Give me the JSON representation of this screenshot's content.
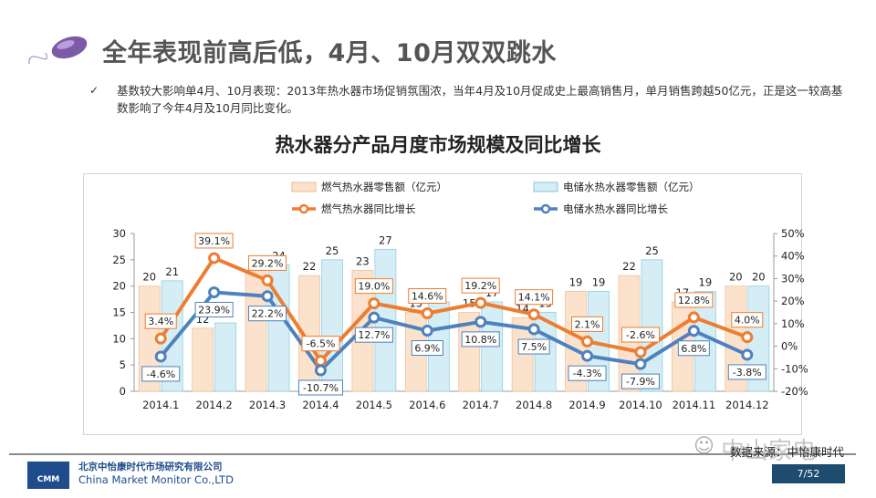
{
  "header": {
    "title": "全年表现前高后低，4月、10月双双跳水",
    "bullet_mark": "✓",
    "bullet": "基数较大影响单4月、10月表现：2013年热水器市场促销氛围浓，当年4月及10月促成史上最高销售月，单月销售跨越50亿元，正是这一较高基数影响了今年4月及10月同比变化。"
  },
  "chart_title": "热水器分产品月度市场规模及同比增长",
  "chart_data": {
    "type": "bar",
    "categories": [
      "2014.1",
      "2014.2",
      "2014.3",
      "2014.4",
      "2014.5",
      "2014.6",
      "2014.7",
      "2014.8",
      "2014.9",
      "2014.10",
      "2014.11",
      "2014.12"
    ],
    "series": [
      {
        "name": "燃气热水器零售额（亿元）",
        "type": "bar",
        "axis": "left",
        "color": "#fbe2cc",
        "values": [
          20,
          12,
          23,
          22,
          23,
          15,
          15,
          14,
          19,
          22,
          17,
          20
        ]
      },
      {
        "name": "电储水热水器零售额（亿元）",
        "type": "bar",
        "axis": "left",
        "color": "#d5eef5",
        "values": [
          21,
          13,
          24,
          25,
          27,
          17,
          17,
          15,
          19,
          25,
          19,
          20
        ]
      },
      {
        "name": "燃气热水器同比增长",
        "type": "line",
        "axis": "right",
        "color": "#ed7d31",
        "values": [
          3.4,
          39.1,
          29.2,
          -6.5,
          19.0,
          14.6,
          19.2,
          14.1,
          2.1,
          -2.6,
          12.8,
          4.0
        ],
        "labels": [
          "3.4%",
          "39.1%",
          "29.2%",
          "-6.5%",
          "19.0%",
          "14.6%",
          "19.2%",
          "14.1%",
          "2.1%",
          "-2.6%",
          "12.8%",
          "4.0%"
        ]
      },
      {
        "name": "电储水热水器同比增长",
        "type": "line",
        "axis": "right",
        "color": "#4f81bd",
        "values": [
          -4.6,
          23.9,
          22.2,
          -10.7,
          12.7,
          6.9,
          10.8,
          7.5,
          -4.3,
          -7.9,
          6.8,
          -3.8
        ],
        "labels": [
          "-4.6%",
          "23.9%",
          "22.2%",
          "-10.7%",
          "12.7%",
          "6.9%",
          "10.8%",
          "7.5%",
          "-4.3%",
          "-7.9%",
          "6.8%",
          "-3.8%"
        ]
      }
    ],
    "y_left": {
      "min": 0,
      "max": 30,
      "ticks": [
        "0",
        "5",
        "10",
        "15",
        "20",
        "25",
        "30"
      ]
    },
    "y_right": {
      "min": -20,
      "max": 50,
      "ticks": [
        "-20%",
        "-10%",
        "0%",
        "10%",
        "20%",
        "30%",
        "40%",
        "50%"
      ]
    },
    "legend_position": "top",
    "grid": false
  },
  "footer": {
    "source": "数据来源：中怡康时代",
    "company_cn": "北京中怡康时代市场研究有限公司",
    "company_en": "China Market Monitor Co.,LTD",
    "logo_text": "CMM",
    "page": "7/52",
    "watermark": "中山家电"
  },
  "colors": {
    "gas_bar": "#fbe2cc",
    "elec_bar": "#d5eef5",
    "gas_line": "#ed7d31",
    "elec_line": "#4f81bd",
    "page_badge": "#1e4c6e"
  }
}
